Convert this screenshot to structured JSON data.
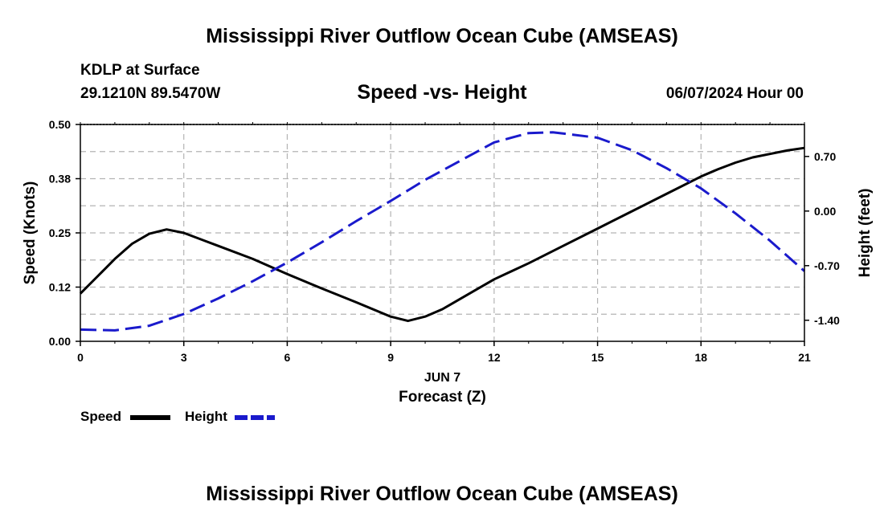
{
  "header": {
    "title": "Mississippi River Outflow Ocean Cube (AMSEAS)",
    "station": "KDLP at Surface",
    "coords": "29.1210N  89.5470W",
    "subtitle": "Speed -vs- Height",
    "datetime": "06/07/2024 Hour 00"
  },
  "footer": {
    "title": "Mississippi River Outflow Ocean Cube (AMSEAS)"
  },
  "chart_data": {
    "type": "line",
    "title": "Speed -vs- Height",
    "xlabel": "Forecast (Z)",
    "xlabel_date": "JUN 7",
    "ylabel": "Speed (Knots)",
    "y2label": "Height (feet)",
    "xlim": [
      0,
      21
    ],
    "ylim": [
      0,
      0.5
    ],
    "y2lim": [
      -1.67,
      1.11
    ],
    "x_ticks": [
      0,
      3,
      6,
      9,
      12,
      15,
      18,
      21
    ],
    "x_tick_labels": [
      "0",
      "3",
      "6",
      "9",
      "12",
      "15",
      "18",
      "21"
    ],
    "y_ticks": [
      0,
      0.125,
      0.25,
      0.375,
      0.5
    ],
    "y_tick_labels": [
      "0.00",
      "0.12",
      "0.25",
      "0.38",
      "0.50"
    ],
    "y2_ticks": [
      -1.4,
      -0.7,
      0,
      0.7
    ],
    "y2_tick_labels": [
      "-1.40",
      "-0.70",
      "0.00",
      "0.70"
    ],
    "grid": true,
    "series": [
      {
        "name": "Speed",
        "axis": "left",
        "color": "#000000",
        "style": "solid",
        "x": [
          0,
          0.5,
          1,
          1.5,
          2,
          2.5,
          3,
          4,
          5,
          6,
          7,
          8,
          9,
          9.5,
          10,
          10.5,
          11,
          11.5,
          12,
          13,
          14,
          15,
          16,
          17,
          18,
          18.5,
          19,
          19.5,
          20,
          20.5,
          21
        ],
        "values": [
          0.11,
          0.15,
          0.19,
          0.225,
          0.248,
          0.258,
          0.25,
          0.22,
          0.19,
          0.155,
          0.122,
          0.09,
          0.057,
          0.047,
          0.057,
          0.074,
          0.097,
          0.12,
          0.143,
          0.18,
          0.22,
          0.26,
          0.3,
          0.34,
          0.38,
          0.397,
          0.412,
          0.424,
          0.432,
          0.44,
          0.446
        ]
      },
      {
        "name": "Height",
        "axis": "right",
        "color": "#1a1acc",
        "style": "dashed",
        "x": [
          0,
          1,
          2,
          3,
          4,
          5,
          6,
          7,
          8,
          9,
          10,
          11,
          12,
          13,
          13.7,
          15,
          16,
          17,
          18,
          19,
          20,
          21
        ],
        "values": [
          -1.52,
          -1.53,
          -1.47,
          -1.32,
          -1.12,
          -0.9,
          -0.66,
          -0.4,
          -0.13,
          0.13,
          0.4,
          0.64,
          0.88,
          1.0,
          1.01,
          0.94,
          0.78,
          0.55,
          0.29,
          -0.03,
          -0.38,
          -0.77
        ]
      }
    ]
  }
}
